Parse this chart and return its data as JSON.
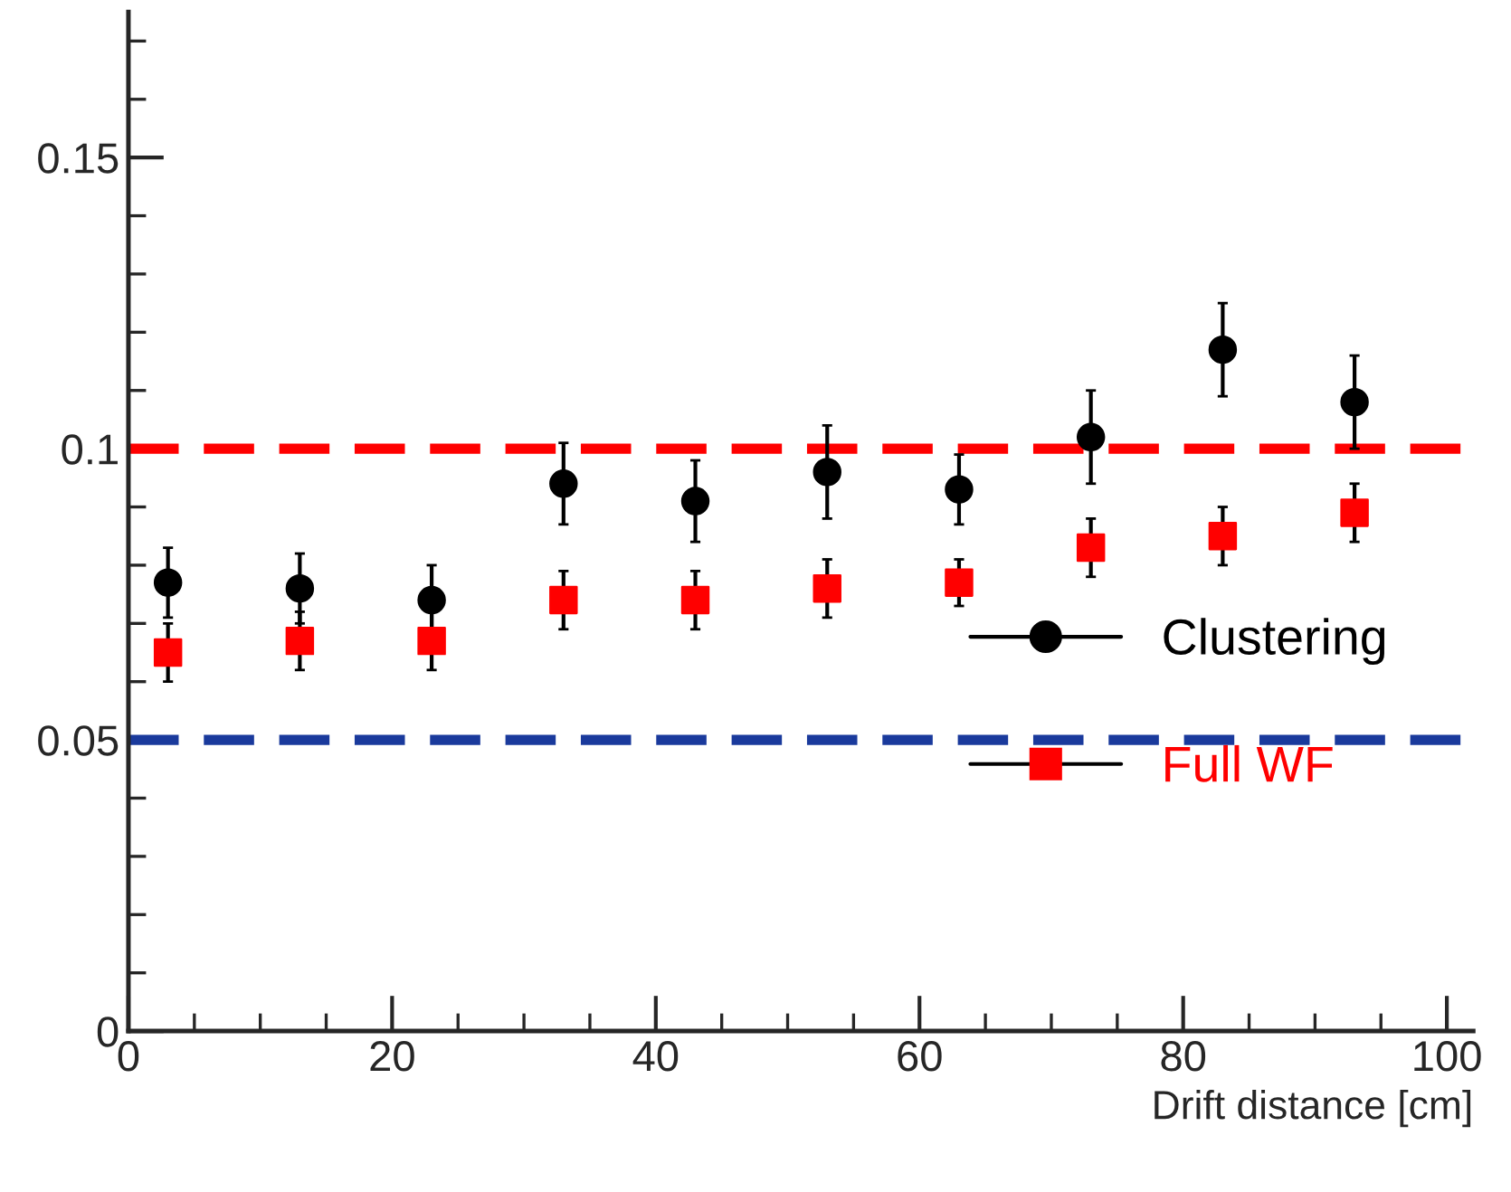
{
  "chart_data": {
    "type": "scatter",
    "xlabel": "Drift distance [cm]",
    "xlim": [
      0,
      102
    ],
    "ylim": [
      0,
      0.175
    ],
    "xticks": [
      0,
      20,
      40,
      60,
      80,
      100
    ],
    "yticks": [
      0,
      0.05,
      0.1,
      0.15
    ],
    "grid": false,
    "legend": "right",
    "series": [
      {
        "name": "Clustering",
        "color": "#000000",
        "marker": "circle",
        "x": [
          3,
          13,
          23,
          33,
          43,
          53,
          63,
          73,
          83,
          93
        ],
        "values": [
          0.077,
          0.076,
          0.074,
          0.094,
          0.091,
          0.096,
          0.093,
          0.102,
          0.117,
          0.108
        ],
        "errors": [
          0.006,
          0.006,
          0.006,
          0.007,
          0.007,
          0.008,
          0.006,
          0.008,
          0.008,
          0.008
        ]
      },
      {
        "name": "Full WF",
        "color": "#ff0000",
        "marker": "square",
        "x": [
          3,
          13,
          23,
          33,
          43,
          53,
          63,
          73,
          83,
          93
        ],
        "values": [
          0.065,
          0.067,
          0.067,
          0.074,
          0.074,
          0.076,
          0.077,
          0.083,
          0.085,
          0.089
        ],
        "errors": [
          0.005,
          0.005,
          0.005,
          0.005,
          0.005,
          0.005,
          0.004,
          0.005,
          0.005,
          0.005
        ]
      }
    ],
    "ref_lines": [
      {
        "axis": "y",
        "value": 0.1,
        "label": null,
        "color": "#ff0000",
        "line_style": "dashed"
      },
      {
        "axis": "y",
        "value": 0.05,
        "label": null,
        "color": "#1a3a9c",
        "line_style": "dashed"
      }
    ]
  }
}
